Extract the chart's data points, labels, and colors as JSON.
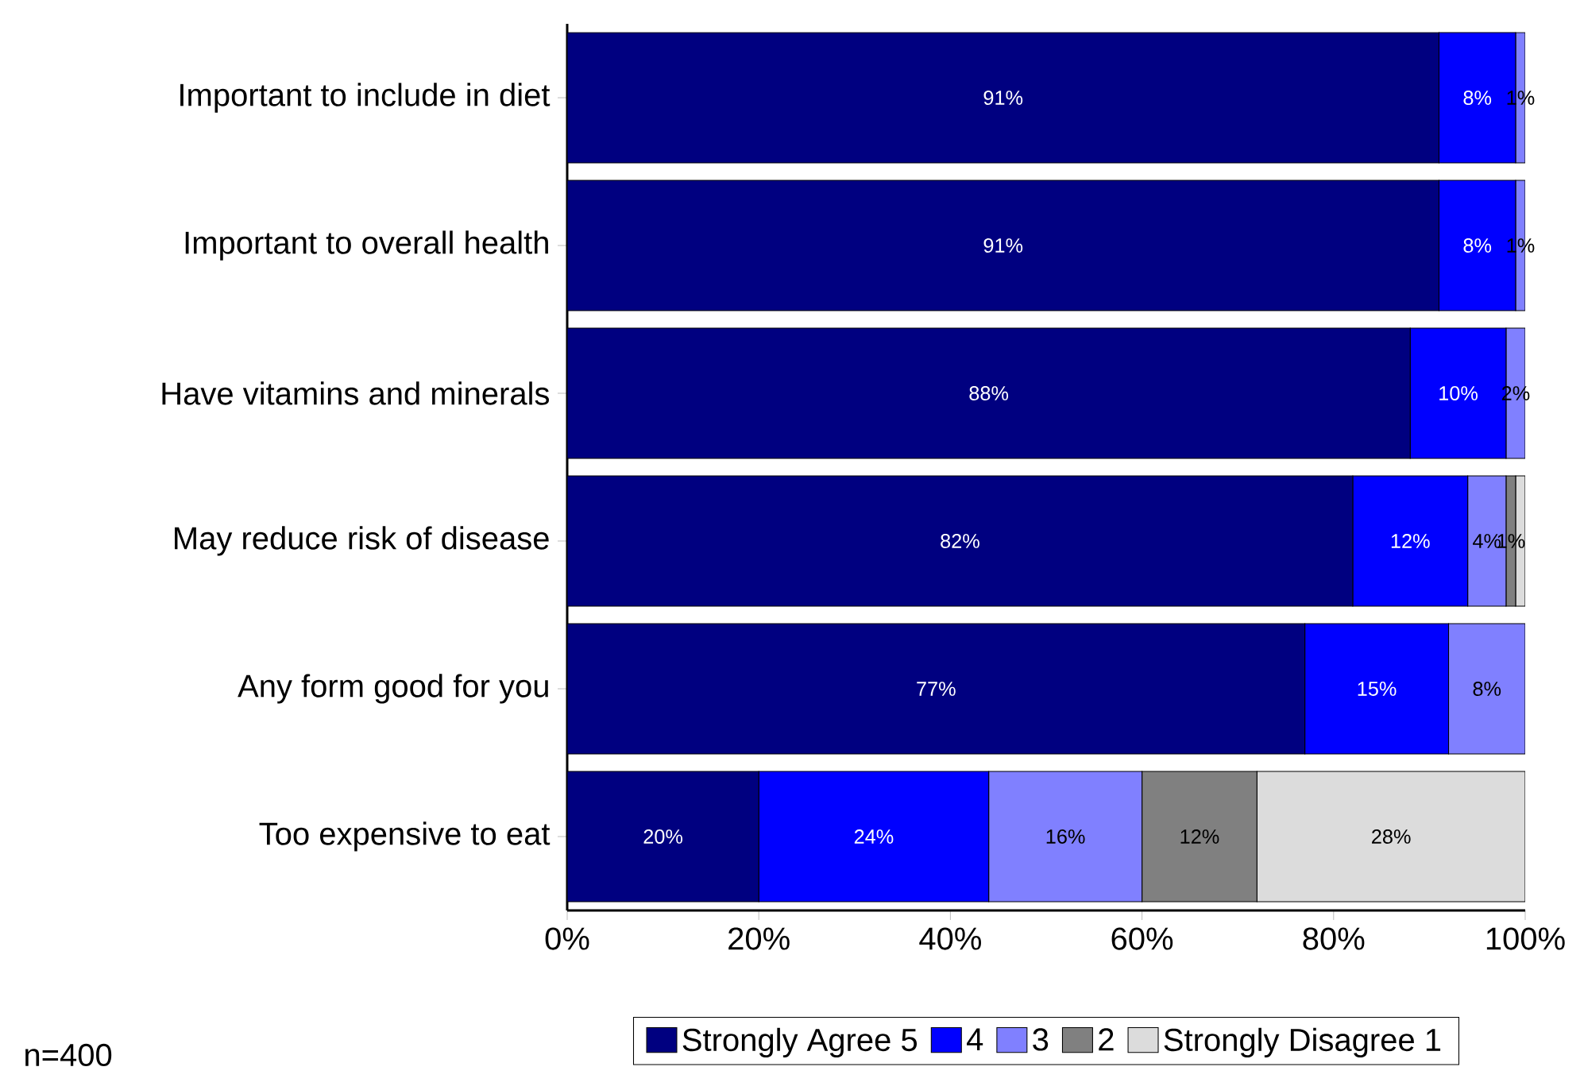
{
  "chart_data": {
    "type": "bar",
    "orientation": "horizontal",
    "stacked": true,
    "categories": [
      "Important to include in diet",
      "Important to overall health",
      "Have vitamins and minerals",
      "May reduce risk of disease",
      "Any form good for you",
      "Too expensive to eat"
    ],
    "series": [
      {
        "name": "Strongly Agree 5",
        "color": "#000080",
        "values": [
          91,
          91,
          88,
          82,
          77,
          20
        ],
        "value_labels": [
          "91%",
          "91%",
          "88%",
          "82%",
          "77%",
          "20%"
        ]
      },
      {
        "name": "4",
        "color": "#0000ff",
        "values": [
          8,
          8,
          10,
          12,
          15,
          24
        ],
        "value_labels": [
          "8%",
          "8%",
          "10%",
          "12%",
          "15%",
          "24%"
        ]
      },
      {
        "name": "3",
        "color": "#8080ff",
        "values": [
          1,
          1,
          2,
          4,
          8,
          16
        ],
        "value_labels": [
          "1%",
          "1%",
          "2%",
          "4%",
          "8%",
          "16%"
        ]
      },
      {
        "name": "2",
        "color": "#808080",
        "values": [
          null,
          null,
          null,
          1,
          null,
          12
        ],
        "value_labels": [
          null,
          null,
          null,
          "1%",
          null,
          "12%"
        ]
      },
      {
        "name": "Strongly Disagree 1",
        "color": "#dcdcdc",
        "values": [
          null,
          null,
          null,
          1,
          null,
          28
        ],
        "value_labels": [
          null,
          null,
          null,
          null,
          null,
          "28%"
        ]
      }
    ],
    "xlim": [
      0,
      100
    ],
    "xticks": [
      {
        "value": 0,
        "label": "0%"
      },
      {
        "value": 20,
        "label": "20%"
      },
      {
        "value": 40,
        "label": "40%"
      },
      {
        "value": 60,
        "label": "60%"
      },
      {
        "value": 80,
        "label": "80%"
      },
      {
        "value": 100,
        "label": "100%"
      }
    ],
    "legend": "bottom",
    "annotations": [
      "n=400"
    ]
  }
}
